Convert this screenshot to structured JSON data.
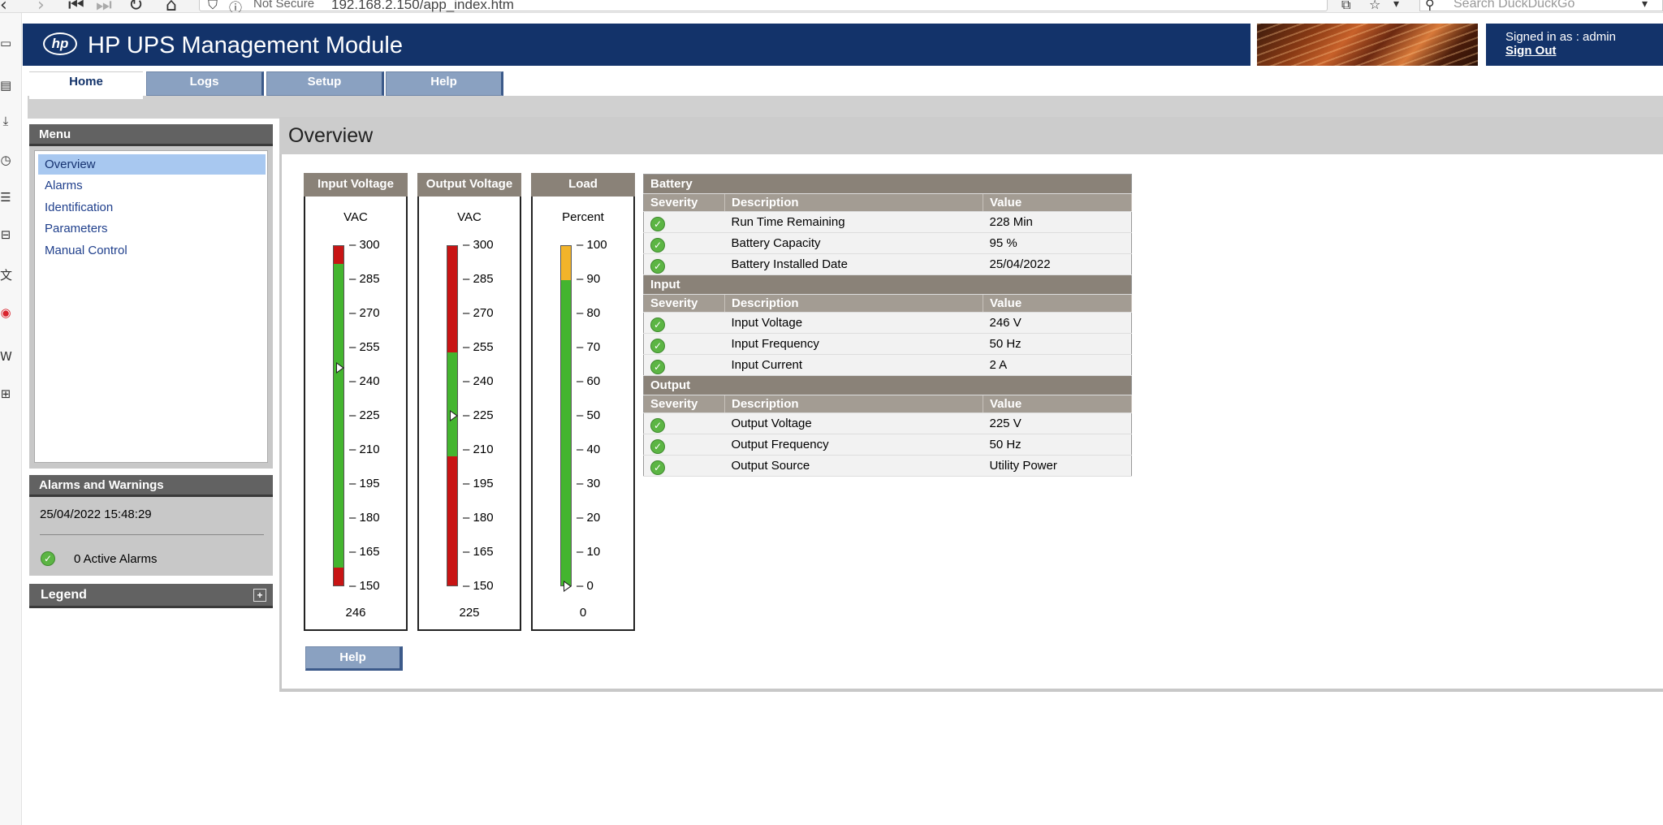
{
  "browser": {
    "security_label": "Not Secure",
    "url": "192.168.2.150/app_index.htm",
    "search_placeholder": "Search DuckDuckGo"
  },
  "header": {
    "logo_text": "hp",
    "title": "HP UPS Management Module",
    "signed_in": "Signed in as : admin",
    "sign_out": "Sign Out"
  },
  "tabs": [
    {
      "label": "Home",
      "active": true
    },
    {
      "label": "Logs",
      "active": false
    },
    {
      "label": "Setup",
      "active": false
    },
    {
      "label": "Help",
      "active": false
    }
  ],
  "menu": {
    "title": "Menu",
    "items": [
      {
        "label": "Overview",
        "selected": true
      },
      {
        "label": "Alarms",
        "selected": false
      },
      {
        "label": "Identification",
        "selected": false
      },
      {
        "label": "Parameters",
        "selected": false
      },
      {
        "label": "Manual Control",
        "selected": false
      }
    ]
  },
  "alarms": {
    "title": "Alarms and Warnings",
    "timestamp": "25/04/2022 15:48:29",
    "active_alarms": "0 Active Alarms"
  },
  "legend": {
    "title": "Legend"
  },
  "overview": {
    "title": "Overview",
    "help_button": "Help"
  },
  "gauges": [
    {
      "title": "Input Voltage",
      "unit": "VAC",
      "value_text": "246",
      "value": 246,
      "min": 150,
      "max": 300,
      "ticks": [
        "300",
        "285",
        "270",
        "255",
        "240",
        "225",
        "210",
        "195",
        "180",
        "165",
        "150"
      ],
      "zones": [
        {
          "from": 150,
          "to": 158,
          "color": "#c81414"
        },
        {
          "from": 158,
          "to": 292,
          "color": "#44b52f"
        },
        {
          "from": 292,
          "to": 300,
          "color": "#c81414"
        }
      ]
    },
    {
      "title": "Output Voltage",
      "unit": "VAC",
      "value_text": "225",
      "value": 225,
      "min": 150,
      "max": 300,
      "ticks": [
        "300",
        "285",
        "270",
        "255",
        "240",
        "225",
        "210",
        "195",
        "180",
        "165",
        "150"
      ],
      "zones": [
        {
          "from": 150,
          "to": 207,
          "color": "#c81414"
        },
        {
          "from": 207,
          "to": 253,
          "color": "#44b52f"
        },
        {
          "from": 253,
          "to": 300,
          "color": "#c81414"
        }
      ]
    },
    {
      "title": "Load",
      "unit": "Percent",
      "value_text": "0",
      "value": 0,
      "min": 0,
      "max": 100,
      "ticks": [
        "100",
        "90",
        "80",
        "70",
        "60",
        "50",
        "40",
        "30",
        "20",
        "10",
        "0"
      ],
      "zones": [
        {
          "from": 0,
          "to": 90,
          "color": "#44b52f"
        },
        {
          "from": 90,
          "to": 100,
          "color": "#f2b42a"
        }
      ]
    }
  ],
  "status_sections": [
    {
      "title": "Battery",
      "columns": [
        "Severity",
        "Description",
        "Value"
      ],
      "rows": [
        {
          "description": "Run Time Remaining",
          "value": "228 Min"
        },
        {
          "description": "Battery Capacity",
          "value": "95 %"
        },
        {
          "description": "Battery Installed Date",
          "value": "25/04/2022"
        }
      ]
    },
    {
      "title": "Input",
      "columns": [
        "Severity",
        "Description",
        "Value"
      ],
      "rows": [
        {
          "description": "Input Voltage",
          "value": "246 V"
        },
        {
          "description": "Input Frequency",
          "value": "50 Hz"
        },
        {
          "description": "Input Current",
          "value": "2 A"
        }
      ]
    },
    {
      "title": "Output",
      "columns": [
        "Severity",
        "Description",
        "Value"
      ],
      "rows": [
        {
          "description": "Output Voltage",
          "value": "225 V"
        },
        {
          "description": "Output Frequency",
          "value": "50 Hz"
        },
        {
          "description": "Output Source",
          "value": "Utility Power"
        }
      ]
    }
  ]
}
